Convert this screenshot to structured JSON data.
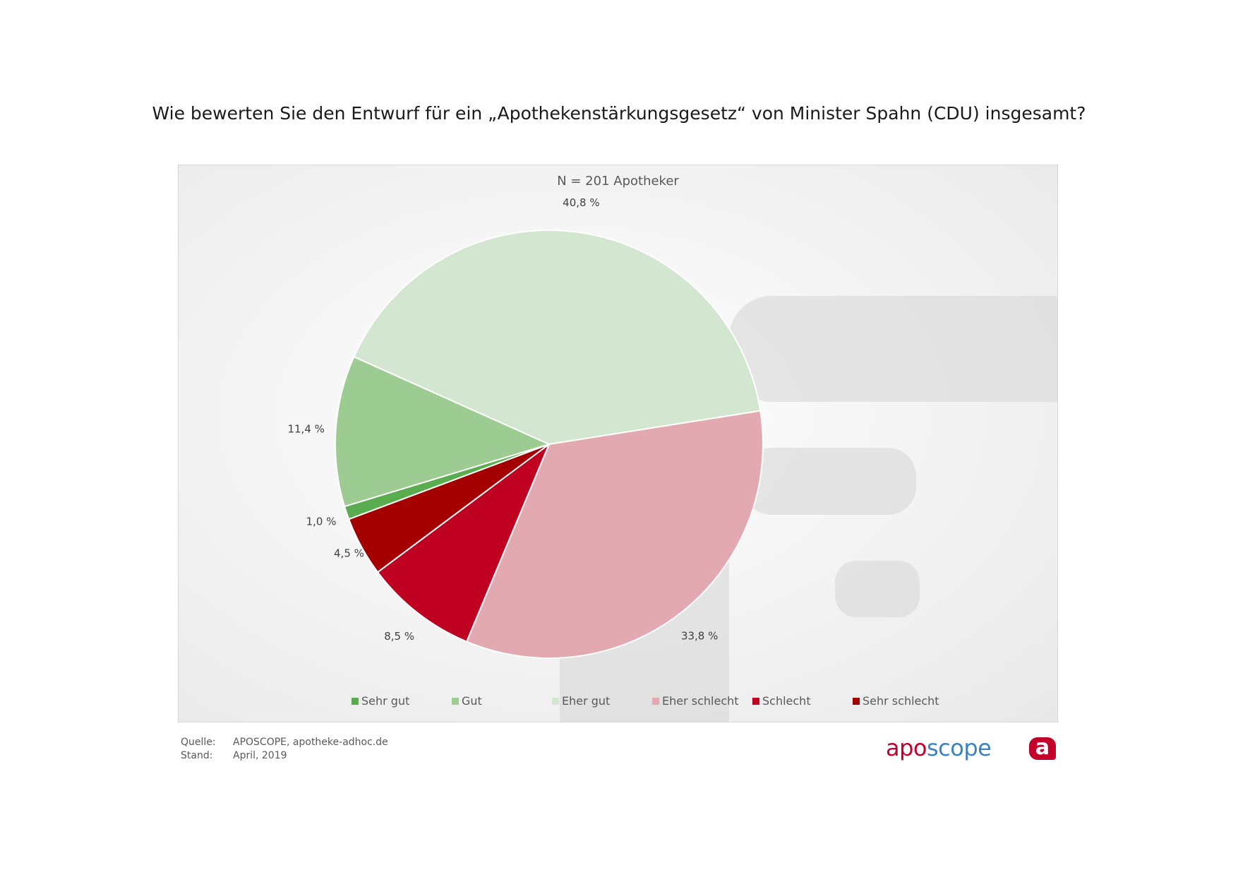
{
  "title": "Wie bewerten Sie den Entwurf für ein „Apothekenstärkungsgesetz“ von Minister Spahn (CDU) insgesamt?",
  "chart_data": {
    "type": "pie",
    "title": "Wie bewerten Sie den Entwurf für ein „Apothekenstärkungsgesetz“ von Minister Spahn (CDU) insgesamt?",
    "subtitle": "N = 201 Apotheker",
    "legend_position": "bottom",
    "slices": [
      {
        "name": "Eher schlecht",
        "value": 33.8,
        "label": "33,8 %",
        "color": "#e3a9b1"
      },
      {
        "name": "Schlecht",
        "value": 8.5,
        "label": "8,5 %",
        "color": "#c00020"
      },
      {
        "name": "Sehr schlecht",
        "value": 4.5,
        "label": "4,5 %",
        "color": "#a50000"
      },
      {
        "name": "Sehr gut",
        "value": 1.0,
        "label": "1,0 %",
        "color": "#5aad4e"
      },
      {
        "name": "Gut",
        "value": 11.4,
        "label": "11,4 %",
        "color": "#9dcc92"
      },
      {
        "name": "Eher gut",
        "value": 40.8,
        "label": "40,8 %",
        "color": "#d2e6d0"
      }
    ],
    "legend_order": [
      "Sehr gut",
      "Gut",
      "Eher gut",
      "Eher schlecht",
      "Schlecht",
      "Sehr schlecht"
    ]
  },
  "footer": {
    "source_label": "Quelle:",
    "source_value": "APOSCOPE, apotheke-adhoc.de",
    "date_label": "Stand:",
    "date_value": "April, 2019"
  },
  "brand": {
    "part1": "apo",
    "part2": "scope",
    "icon_letter": "a"
  }
}
